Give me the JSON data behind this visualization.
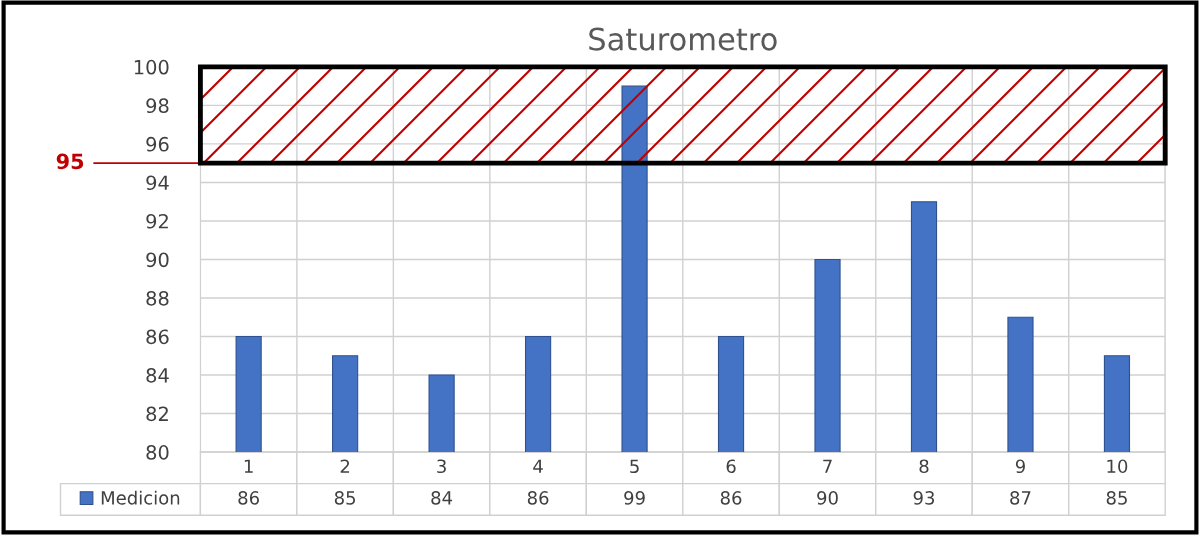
{
  "chart_data": {
    "type": "bar",
    "title": "Saturometro",
    "categories": [
      "1",
      "2",
      "3",
      "4",
      "5",
      "6",
      "7",
      "8",
      "9",
      "10"
    ],
    "series": [
      {
        "name": "Medicion",
        "color": "#4472c4",
        "values": [
          86,
          85,
          84,
          86,
          99,
          86,
          90,
          93,
          87,
          85
        ]
      }
    ],
    "ylim": [
      80,
      100
    ],
    "yticks": [
      80,
      82,
      84,
      86,
      88,
      90,
      92,
      94,
      96,
      98,
      100
    ],
    "grid": true,
    "legend": "bottom left",
    "data_labels": true,
    "ref_lines": [
      {
        "axis": "y",
        "value": 95,
        "label": "95",
        "color": "#c00000"
      }
    ],
    "bands": [
      {
        "axis": "y",
        "from": 95,
        "to": 100,
        "color": "#c00000"
      }
    ]
  }
}
